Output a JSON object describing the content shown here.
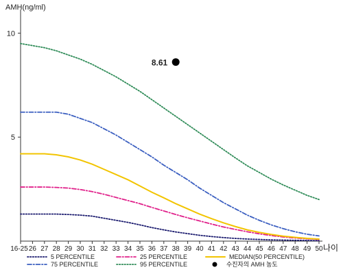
{
  "chart_data": {
    "type": "line",
    "ylabel": "AMH(ng/ml)",
    "xlabel": "나이",
    "ylim": [
      0,
      11
    ],
    "yticks": [
      5,
      10
    ],
    "xticks": [
      "16-25",
      "26",
      "27",
      "28",
      "29",
      "30",
      "31",
      "32",
      "33",
      "34",
      "35",
      "36",
      "37",
      "38",
      "39",
      "40",
      "41",
      "42",
      "43",
      "44",
      "45",
      "46",
      "47",
      "48",
      "49",
      "50"
    ],
    "x_positions": [
      25,
      26,
      27,
      28,
      29,
      30,
      31,
      32,
      33,
      34,
      35,
      36,
      37,
      38,
      39,
      40,
      41,
      42,
      43,
      44,
      45,
      46,
      47,
      48,
      49,
      50
    ],
    "series": [
      {
        "name": "5 PERCENTILE",
        "color": "#1a1a6e",
        "style": "dotted",
        "values": [
          1.3,
          1.3,
          1.3,
          1.3,
          1.28,
          1.25,
          1.2,
          1.1,
          1.0,
          0.9,
          0.78,
          0.65,
          0.54,
          0.44,
          0.36,
          0.28,
          0.22,
          0.17,
          0.13,
          0.1,
          0.08,
          0.06,
          0.05,
          0.04,
          0.03,
          0.02
        ]
      },
      {
        "name": "25 PERCENTILE",
        "color": "#e0208a",
        "style": "dashdot",
        "values": [
          2.6,
          2.6,
          2.6,
          2.58,
          2.55,
          2.48,
          2.38,
          2.25,
          2.1,
          1.95,
          1.8,
          1.62,
          1.45,
          1.28,
          1.12,
          0.97,
          0.82,
          0.68,
          0.56,
          0.45,
          0.35,
          0.27,
          0.2,
          0.15,
          0.11,
          0.08
        ]
      },
      {
        "name": "MEDIAN(50 PERCENTILE)",
        "color": "#f2c400",
        "style": "solid",
        "values": [
          4.2,
          4.2,
          4.2,
          4.15,
          4.05,
          3.9,
          3.7,
          3.45,
          3.2,
          2.95,
          2.65,
          2.35,
          2.08,
          1.8,
          1.55,
          1.3,
          1.08,
          0.88,
          0.7,
          0.54,
          0.42,
          0.32,
          0.24,
          0.18,
          0.13,
          0.1
        ]
      },
      {
        "name": "75 PERCENTILE",
        "color": "#3a5ec0",
        "style": "dashdot",
        "values": [
          6.2,
          6.2,
          6.2,
          6.2,
          6.1,
          5.9,
          5.7,
          5.4,
          5.1,
          4.75,
          4.4,
          4.05,
          3.65,
          3.3,
          2.95,
          2.55,
          2.2,
          1.85,
          1.55,
          1.25,
          1.0,
          0.78,
          0.6,
          0.45,
          0.33,
          0.25
        ]
      },
      {
        "name": "95 PERCENTILE",
        "color": "#2e8b57",
        "style": "dotted",
        "values": [
          9.5,
          9.4,
          9.3,
          9.15,
          8.95,
          8.75,
          8.5,
          8.2,
          7.9,
          7.55,
          7.2,
          6.8,
          6.4,
          6.0,
          5.6,
          5.2,
          4.8,
          4.4,
          4.0,
          3.62,
          3.3,
          2.98,
          2.7,
          2.45,
          2.2,
          2.0
        ]
      }
    ],
    "point": {
      "label": "8.61",
      "x": 38,
      "y": 8.61,
      "legend": "수진자의 AMH 농도"
    }
  }
}
